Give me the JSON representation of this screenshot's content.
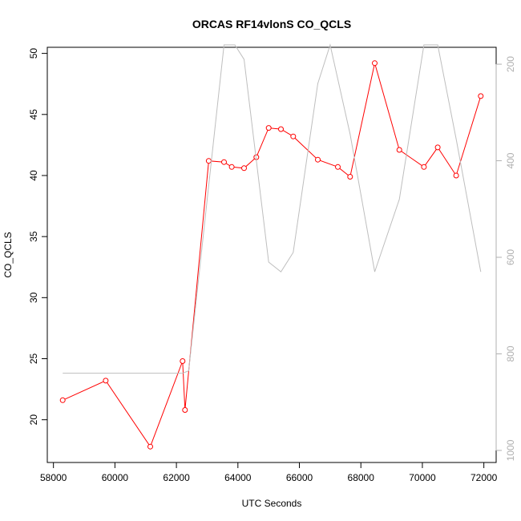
{
  "chart_data": {
    "type": "line",
    "title": "ORCAS RF14vlonS CO_QCLS",
    "xlabel": "UTC Seconds",
    "ylabel": "CO_QCLS",
    "xlim": [
      57800,
      72400
    ],
    "ylim": [
      16.5,
      50.5
    ],
    "y2lim": [
      1025,
      165
    ],
    "x_ticks": [
      "58000",
      "60000",
      "62000",
      "64000",
      "66000",
      "68000",
      "70000",
      "72000"
    ],
    "y_ticks": [
      "20",
      "25",
      "30",
      "35",
      "40",
      "45",
      "50"
    ],
    "y2_ticks": [
      "200",
      "400",
      "600",
      "800",
      "1000"
    ],
    "y2_reversed": true,
    "grid": false,
    "series": [
      {
        "color": "#ff0000",
        "marker": "open-circle",
        "axis": "left",
        "x": [
          58300,
          59700,
          61150,
          62200,
          62280,
          63050,
          63550,
          63800,
          64200,
          64600,
          65000,
          65400,
          65800,
          66600,
          67250,
          67650,
          68450,
          69250,
          70050,
          70500,
          71100,
          71900
        ],
        "y": [
          21.6,
          23.2,
          17.8,
          24.8,
          20.8,
          41.2,
          41.1,
          40.7,
          40.6,
          41.5,
          43.9,
          43.8,
          43.2,
          41.3,
          40.7,
          39.9,
          49.2,
          42.1,
          40.7,
          42.3,
          40.0,
          46.5
        ]
      },
      {
        "color": "#bebebe",
        "marker": "none",
        "axis": "right",
        "x": [
          58300,
          62200,
          62400,
          63000,
          63550,
          63900,
          64200,
          65000,
          65400,
          65800,
          66600,
          67000,
          67650,
          68450,
          69250,
          70050,
          70500,
          71100,
          71900
        ],
        "y": [
          840,
          840,
          835,
          480,
          160,
          160,
          190,
          610,
          630,
          590,
          240,
          160,
          345,
          630,
          480,
          160,
          160,
          355,
          630
        ]
      }
    ]
  }
}
